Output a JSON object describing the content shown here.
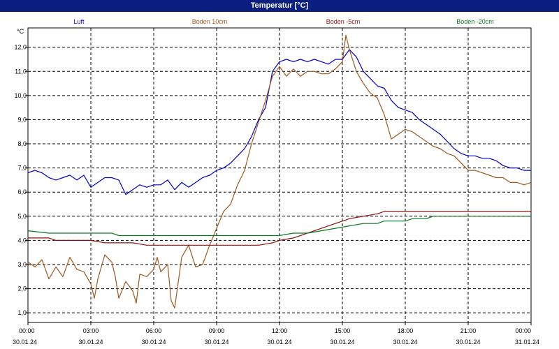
{
  "chart_data": {
    "type": "line",
    "title": "Temperatur [°C]",
    "ylabel": "°C",
    "ylim": [
      0.6,
      12.8
    ],
    "xlim": [
      "30.01.24 00:00",
      "31.01.24 00:00"
    ],
    "y_ticks": [
      "1,0",
      "2,0",
      "3,0",
      "4,0",
      "5,0",
      "6,0",
      "7,0",
      "8,0",
      "9,0",
      "10,0",
      "11,0",
      "12,0"
    ],
    "x_ticks": [
      {
        "time": "00:00",
        "date": "30.01.24"
      },
      {
        "time": "03:00",
        "date": "30.01.24"
      },
      {
        "time": "06:00",
        "date": "30.01.24"
      },
      {
        "time": "09:00",
        "date": "30.01.24"
      },
      {
        "time": "12:00",
        "date": "30.01.24"
      },
      {
        "time": "15:00",
        "date": "30.01.24"
      },
      {
        "time": "18:00",
        "date": "30.01.24"
      },
      {
        "time": "21:00",
        "date": "30.01.24"
      },
      {
        "time": "00:00",
        "date": "31.01.24"
      }
    ],
    "grid": true,
    "legend": "top",
    "series": [
      {
        "name": "Luft",
        "color": "#0000c8",
        "points": [
          [
            "00:00",
            6.8
          ],
          [
            "00:20",
            6.9
          ],
          [
            "00:40",
            6.8
          ],
          [
            "01:00",
            6.6
          ],
          [
            "01:20",
            6.5
          ],
          [
            "01:40",
            6.6
          ],
          [
            "02:00",
            6.7
          ],
          [
            "02:20",
            6.5
          ],
          [
            "02:40",
            6.7
          ],
          [
            "03:00",
            6.2
          ],
          [
            "03:20",
            6.4
          ],
          [
            "03:40",
            6.6
          ],
          [
            "04:00",
            6.6
          ],
          [
            "04:20",
            6.5
          ],
          [
            "04:40",
            5.9
          ],
          [
            "05:00",
            6.1
          ],
          [
            "05:20",
            6.3
          ],
          [
            "05:40",
            6.2
          ],
          [
            "06:00",
            6.3
          ],
          [
            "06:20",
            6.3
          ],
          [
            "06:40",
            6.5
          ],
          [
            "07:00",
            6.1
          ],
          [
            "07:20",
            6.4
          ],
          [
            "07:40",
            6.2
          ],
          [
            "08:00",
            6.4
          ],
          [
            "08:20",
            6.6
          ],
          [
            "08:40",
            6.7
          ],
          [
            "09:00",
            6.9
          ],
          [
            "09:20",
            7.0
          ],
          [
            "09:40",
            7.2
          ],
          [
            "10:00",
            7.5
          ],
          [
            "10:20",
            7.8
          ],
          [
            "10:40",
            8.3
          ],
          [
            "11:00",
            9.0
          ],
          [
            "11:20",
            9.5
          ],
          [
            "11:40",
            11.0
          ],
          [
            "12:00",
            11.4
          ],
          [
            "12:20",
            11.5
          ],
          [
            "12:40",
            11.4
          ],
          [
            "13:00",
            11.5
          ],
          [
            "13:20",
            11.4
          ],
          [
            "13:40",
            11.5
          ],
          [
            "14:00",
            11.4
          ],
          [
            "14:20",
            11.3
          ],
          [
            "14:40",
            11.5
          ],
          [
            "15:00",
            11.5
          ],
          [
            "15:20",
            11.9
          ],
          [
            "15:40",
            11.6
          ],
          [
            "16:00",
            11.0
          ],
          [
            "16:20",
            10.7
          ],
          [
            "16:40",
            10.4
          ],
          [
            "17:00",
            10.3
          ],
          [
            "17:20",
            9.8
          ],
          [
            "17:40",
            9.5
          ],
          [
            "18:00",
            9.4
          ],
          [
            "18:20",
            9.3
          ],
          [
            "18:40",
            9.0
          ],
          [
            "19:00",
            8.8
          ],
          [
            "19:20",
            8.6
          ],
          [
            "19:40",
            8.4
          ],
          [
            "20:00",
            8.1
          ],
          [
            "20:20",
            7.8
          ],
          [
            "20:40",
            7.6
          ],
          [
            "21:00",
            7.5
          ],
          [
            "21:20",
            7.5
          ],
          [
            "21:40",
            7.4
          ],
          [
            "22:00",
            7.4
          ],
          [
            "22:20",
            7.3
          ],
          [
            "22:40",
            7.1
          ],
          [
            "23:00",
            7.0
          ],
          [
            "23:20",
            7.0
          ],
          [
            "23:40",
            6.9
          ],
          [
            "24:00",
            6.9
          ]
        ]
      },
      {
        "name": "Boden 10cm",
        "color": "#a0581e",
        "points": [
          [
            "00:00",
            3.1
          ],
          [
            "00:20",
            2.9
          ],
          [
            "00:40",
            3.2
          ],
          [
            "01:00",
            2.4
          ],
          [
            "01:20",
            2.9
          ],
          [
            "01:40",
            2.5
          ],
          [
            "02:00",
            3.3
          ],
          [
            "02:20",
            2.8
          ],
          [
            "02:40",
            2.7
          ],
          [
            "03:00",
            2.2
          ],
          [
            "03:10",
            1.6
          ],
          [
            "03:20",
            2.4
          ],
          [
            "03:40",
            3.4
          ],
          [
            "04:00",
            3.1
          ],
          [
            "04:10",
            2.5
          ],
          [
            "04:20",
            1.6
          ],
          [
            "04:40",
            2.3
          ],
          [
            "05:00",
            1.9
          ],
          [
            "05:10",
            1.4
          ],
          [
            "05:20",
            2.6
          ],
          [
            "05:40",
            2.5
          ],
          [
            "06:00",
            2.8
          ],
          [
            "06:10",
            3.3
          ],
          [
            "06:20",
            2.7
          ],
          [
            "06:40",
            3.0
          ],
          [
            "06:50",
            1.5
          ],
          [
            "07:00",
            1.2
          ],
          [
            "07:20",
            3.3
          ],
          [
            "07:40",
            3.8
          ],
          [
            "08:00",
            2.9
          ],
          [
            "08:20",
            3.0
          ],
          [
            "08:40",
            3.8
          ],
          [
            "09:00",
            4.5
          ],
          [
            "09:20",
            5.2
          ],
          [
            "09:40",
            5.5
          ],
          [
            "10:00",
            6.3
          ],
          [
            "10:20",
            6.9
          ],
          [
            "10:40",
            8.0
          ],
          [
            "11:00",
            8.9
          ],
          [
            "11:20",
            9.8
          ],
          [
            "11:40",
            10.8
          ],
          [
            "12:00",
            11.2
          ],
          [
            "12:20",
            10.8
          ],
          [
            "12:40",
            11.1
          ],
          [
            "13:00",
            10.8
          ],
          [
            "13:20",
            11.0
          ],
          [
            "13:40",
            11.0
          ],
          [
            "14:00",
            10.9
          ],
          [
            "14:20",
            10.9
          ],
          [
            "14:40",
            11.1
          ],
          [
            "15:00",
            11.4
          ],
          [
            "15:10",
            12.5
          ],
          [
            "15:20",
            11.9
          ],
          [
            "15:40",
            11.0
          ],
          [
            "16:00",
            10.5
          ],
          [
            "16:20",
            10.1
          ],
          [
            "16:40",
            9.9
          ],
          [
            "17:00",
            9.2
          ],
          [
            "17:20",
            8.2
          ],
          [
            "17:40",
            8.4
          ],
          [
            "18:00",
            8.6
          ],
          [
            "18:20",
            8.5
          ],
          [
            "18:40",
            8.3
          ],
          [
            "19:00",
            8.1
          ],
          [
            "19:20",
            7.9
          ],
          [
            "19:40",
            7.8
          ],
          [
            "20:00",
            7.6
          ],
          [
            "20:20",
            7.5
          ],
          [
            "20:40",
            7.2
          ],
          [
            "21:00",
            6.9
          ],
          [
            "21:20",
            6.9
          ],
          [
            "21:40",
            6.8
          ],
          [
            "22:00",
            6.7
          ],
          [
            "22:20",
            6.6
          ],
          [
            "22:40",
            6.6
          ],
          [
            "23:00",
            6.4
          ],
          [
            "23:20",
            6.4
          ],
          [
            "23:40",
            6.3
          ],
          [
            "24:00",
            6.4
          ]
        ]
      },
      {
        "name": "Boden -5cm",
        "color": "#8c1010",
        "points": [
          [
            "00:00",
            4.1
          ],
          [
            "01:00",
            4.1
          ],
          [
            "01:20",
            4.0
          ],
          [
            "03:00",
            4.0
          ],
          [
            "03:40",
            3.9
          ],
          [
            "05:00",
            3.9
          ],
          [
            "05:40",
            3.8
          ],
          [
            "08:00",
            3.8
          ],
          [
            "09:00",
            3.8
          ],
          [
            "11:00",
            3.8
          ],
          [
            "11:40",
            3.9
          ],
          [
            "12:00",
            4.0
          ],
          [
            "12:40",
            4.1
          ],
          [
            "13:20",
            4.3
          ],
          [
            "14:00",
            4.5
          ],
          [
            "14:40",
            4.7
          ],
          [
            "15:20",
            4.9
          ],
          [
            "16:00",
            5.0
          ],
          [
            "16:40",
            5.1
          ],
          [
            "17:00",
            5.2
          ],
          [
            "18:00",
            5.2
          ],
          [
            "20:00",
            5.2
          ],
          [
            "22:00",
            5.2
          ],
          [
            "24:00",
            5.2
          ]
        ]
      },
      {
        "name": "Boden -20cm",
        "color": "#0a7820",
        "points": [
          [
            "00:00",
            4.4
          ],
          [
            "01:00",
            4.3
          ],
          [
            "04:00",
            4.3
          ],
          [
            "04:20",
            4.2
          ],
          [
            "08:00",
            4.2
          ],
          [
            "11:00",
            4.2
          ],
          [
            "12:00",
            4.2
          ],
          [
            "12:40",
            4.3
          ],
          [
            "13:20",
            4.3
          ],
          [
            "14:00",
            4.4
          ],
          [
            "14:40",
            4.5
          ],
          [
            "15:20",
            4.6
          ],
          [
            "16:00",
            4.7
          ],
          [
            "16:40",
            4.7
          ],
          [
            "17:00",
            4.8
          ],
          [
            "18:00",
            4.8
          ],
          [
            "18:20",
            4.9
          ],
          [
            "19:00",
            4.9
          ],
          [
            "19:20",
            5.0
          ],
          [
            "20:00",
            5.0
          ],
          [
            "22:00",
            5.0
          ],
          [
            "24:00",
            5.0
          ]
        ]
      }
    ]
  }
}
